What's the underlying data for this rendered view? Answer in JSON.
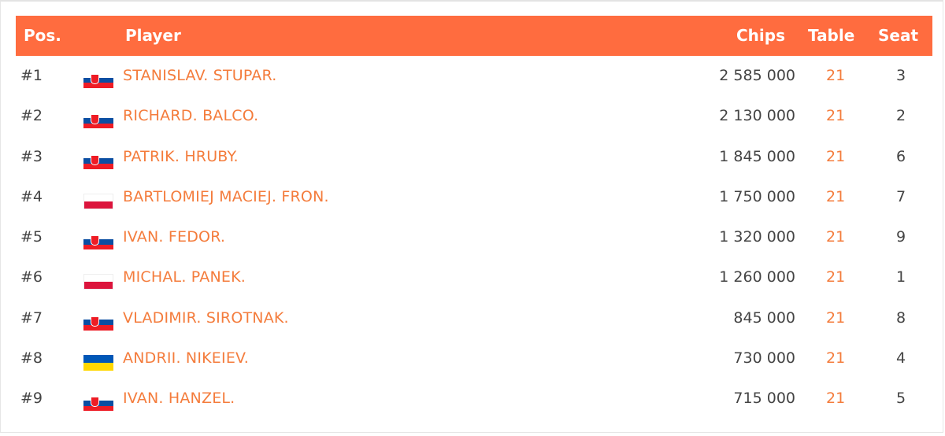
{
  "header": {
    "pos": "Pos.",
    "player": "Player",
    "chips": "Chips",
    "table": "Table",
    "seat": "Seat"
  },
  "colors": {
    "accent": "#ff6c3f",
    "link": "#f47c3c"
  },
  "rows": [
    {
      "pos": "#1",
      "country": "slovakia",
      "name": "STANISLAV. STUPAR.",
      "chips": "2 585 000",
      "table": "21",
      "seat": "3"
    },
    {
      "pos": "#2",
      "country": "slovakia",
      "name": "RICHARD. BALCO.",
      "chips": "2 130 000",
      "table": "21",
      "seat": "2"
    },
    {
      "pos": "#3",
      "country": "slovakia",
      "name": "PATRIK. HRUBY.",
      "chips": "1 845 000",
      "table": "21",
      "seat": "6"
    },
    {
      "pos": "#4",
      "country": "poland",
      "name": "BARTLOMIEJ MACIEJ. FRON.",
      "chips": "1 750 000",
      "table": "21",
      "seat": "7"
    },
    {
      "pos": "#5",
      "country": "slovakia",
      "name": "IVAN. FEDOR.",
      "chips": "1 320 000",
      "table": "21",
      "seat": "9"
    },
    {
      "pos": "#6",
      "country": "poland",
      "name": "MICHAL. PANEK.",
      "chips": "1 260 000",
      "table": "21",
      "seat": "1"
    },
    {
      "pos": "#7",
      "country": "slovakia",
      "name": "VLADIMIR. SIROTNAK.",
      "chips": "845 000",
      "table": "21",
      "seat": "8"
    },
    {
      "pos": "#8",
      "country": "ukraine",
      "name": "ANDRII. NIKEIEV.",
      "chips": "730 000",
      "table": "21",
      "seat": "4"
    },
    {
      "pos": "#9",
      "country": "slovakia",
      "name": "IVAN. HANZEL.",
      "chips": "715 000",
      "table": "21",
      "seat": "5"
    }
  ]
}
